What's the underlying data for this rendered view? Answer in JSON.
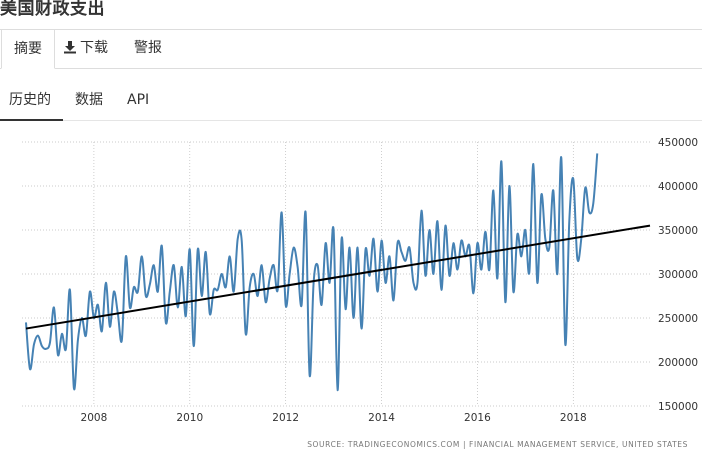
{
  "page": {
    "title": "美国财政支出"
  },
  "tabs": [
    {
      "label": "摘要"
    },
    {
      "label": "下载",
      "icon": "download-icon"
    },
    {
      "label": "警报"
    }
  ],
  "subtabs": [
    {
      "label": "历史的"
    },
    {
      "label": "数据"
    },
    {
      "label": "API"
    }
  ],
  "source": "SOURCE: TRADINGECONOMICS.COM  |  FINANCIAL MANAGEMENT SERVICE, UNITED STATES",
  "colors": {
    "series": "#4682b4",
    "trend": "#000000",
    "grid": "#bbbbbb"
  },
  "chart_data": {
    "type": "line",
    "title": "",
    "xlabel": "",
    "ylabel": "",
    "grid": true,
    "xlim": [
      2006.5,
      2019.6
    ],
    "ylim": [
      150000,
      450000
    ],
    "x_ticks": [
      2008,
      2010,
      2012,
      2014,
      2016,
      2018
    ],
    "y_ticks": [
      150000,
      200000,
      250000,
      300000,
      350000,
      400000,
      450000
    ],
    "y_tick_labels": [
      "150000",
      "200000",
      "250000",
      "300000",
      "350000",
      "400000",
      "450000"
    ],
    "x_tick_labels": [
      "2008",
      "2010",
      "2012",
      "2014",
      "2016",
      "2018"
    ],
    "series": [
      {
        "start": 2006.583,
        "step_months": 1,
        "values": [
          245000,
          192000,
          220000,
          230000,
          218000,
          215000,
          222000,
          262000,
          208000,
          232000,
          215000,
          282000,
          170000,
          225000,
          250000,
          230000,
          280000,
          250000,
          265000,
          235000,
          290000,
          240000,
          280000,
          255000,
          225000,
          320000,
          262000,
          285000,
          280000,
          320000,
          275000,
          288000,
          310000,
          280000,
          332000,
          245000,
          280000,
          310000,
          262000,
          308000,
          252000,
          328000,
          218000,
          328000,
          275000,
          325000,
          255000,
          282000,
          282000,
          300000,
          285000,
          320000,
          280000,
          340000,
          338000,
          232000,
          285000,
          300000,
          275000,
          310000,
          268000,
          295000,
          310000,
          282000,
          370000,
          265000,
          300000,
          330000,
          308000,
          265000,
          370000,
          185000,
          290000,
          310000,
          265000,
          335000,
          290000,
          350000,
          168000,
          340000,
          260000,
          330000,
          250000,
          330000,
          238000,
          328000,
          298000,
          340000,
          280000,
          338000,
          290000,
          320000,
          270000,
          335000,
          325000,
          315000,
          330000,
          290000,
          290000,
          372000,
          298000,
          350000,
          300000,
          360000,
          282000,
          355000,
          298000,
          335000,
          305000,
          338000,
          320000,
          332000,
          278000,
          335000,
          305000,
          348000,
          305000,
          395000,
          295000,
          428000,
          268000,
          400000,
          280000,
          345000,
          320000,
          350000,
          302000,
          425000,
          290000,
          390000,
          340000,
          330000,
          395000,
          300000,
          432000,
          220000,
          360000,
          408000,
          318000,
          340000,
          398000,
          370000,
          380000,
          437000
        ]
      }
    ],
    "trend": {
      "x": [
        2006.583,
        2019.6
      ],
      "y": [
        238000,
        355000
      ]
    }
  }
}
